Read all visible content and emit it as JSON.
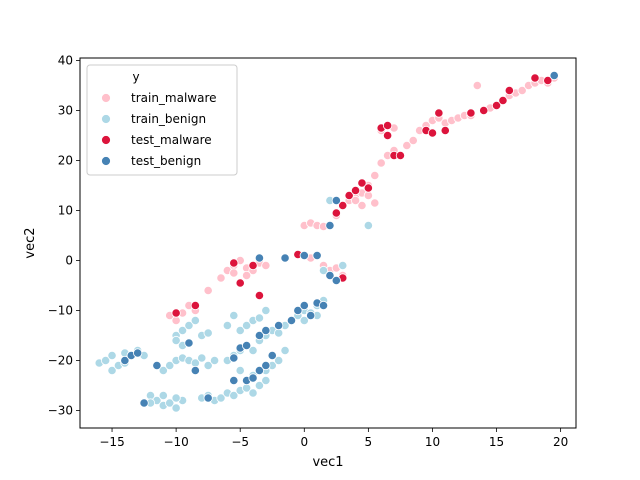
{
  "chart_data": {
    "type": "scatter",
    "title": "",
    "xlabel": "vec1",
    "ylabel": "vec2",
    "xlim": [
      -17.5,
      21.2
    ],
    "ylim": [
      -33.5,
      40.5
    ],
    "xticks": [
      -15,
      -10,
      -5,
      0,
      5,
      10,
      15,
      20
    ],
    "yticks": [
      -30,
      -20,
      -10,
      0,
      10,
      20,
      30,
      40
    ],
    "grid": false,
    "legend": {
      "title": "y",
      "placement": "top-left"
    },
    "series": [
      {
        "name": "train_malware",
        "color": "#ffc0cb",
        "points": [
          [
            -10.5,
            -11
          ],
          [
            -10,
            -12
          ],
          [
            -9.5,
            -10.5
          ],
          [
            -9,
            -9
          ],
          [
            -8.5,
            -10
          ],
          [
            -7.5,
            -6
          ],
          [
            -6.5,
            -3.5
          ],
          [
            -6,
            -2
          ],
          [
            -5.5,
            -1
          ],
          [
            -5,
            0
          ],
          [
            -4.5,
            -1.5
          ],
          [
            -4,
            -2
          ],
          [
            -3.5,
            -0.5
          ],
          [
            -3,
            -1
          ],
          [
            -4.5,
            -3
          ],
          [
            -5.5,
            -2.5
          ],
          [
            0,
            1
          ],
          [
            0.5,
            0.5
          ],
          [
            1,
            1
          ],
          [
            1.5,
            -1
          ],
          [
            2,
            -2
          ],
          [
            2.5,
            -1.5
          ],
          [
            3,
            -3
          ],
          [
            -0.5,
            1.2
          ],
          [
            0,
            7
          ],
          [
            0.5,
            7.5
          ],
          [
            1,
            7
          ],
          [
            1.5,
            6.8
          ],
          [
            2.5,
            9
          ],
          [
            3,
            11
          ],
          [
            3.5,
            12
          ],
          [
            4,
            13
          ],
          [
            4.5,
            13.5
          ],
          [
            5,
            15
          ],
          [
            5,
            13
          ],
          [
            4.5,
            11
          ],
          [
            4,
            12
          ],
          [
            5.5,
            11.5
          ],
          [
            5.5,
            17
          ],
          [
            6,
            19.5
          ],
          [
            6.5,
            21
          ],
          [
            7,
            22
          ],
          [
            7.5,
            21
          ],
          [
            8,
            23
          ],
          [
            8.5,
            24
          ],
          [
            9,
            26
          ],
          [
            9.5,
            27
          ],
          [
            10,
            28
          ],
          [
            10.5,
            28.5
          ],
          [
            11,
            27.5
          ],
          [
            11.5,
            28
          ],
          [
            12,
            28.5
          ],
          [
            12.5,
            29
          ],
          [
            13,
            29
          ],
          [
            13.5,
            35
          ],
          [
            14,
            30
          ],
          [
            14.5,
            30.5
          ],
          [
            15,
            31
          ],
          [
            15.5,
            32
          ],
          [
            16,
            33
          ],
          [
            16.5,
            33.5
          ],
          [
            17,
            34
          ],
          [
            17.5,
            35
          ],
          [
            18,
            35.5
          ],
          [
            18.5,
            36
          ],
          [
            19,
            35.5
          ],
          [
            19.5,
            36.5
          ],
          [
            6,
            26
          ],
          [
            7,
            26.5
          ]
        ]
      },
      {
        "name": "train_benign",
        "color": "#add8e6",
        "points": [
          [
            -16,
            -20.5
          ],
          [
            -15.5,
            -20
          ],
          [
            -15,
            -22
          ],
          [
            -14.5,
            -21
          ],
          [
            -14,
            -18.5
          ],
          [
            -13.5,
            -19
          ],
          [
            -13,
            -18
          ],
          [
            -12.5,
            -19
          ],
          [
            -15,
            -19
          ],
          [
            -14,
            -20.5
          ],
          [
            -12,
            -27
          ],
          [
            -11.5,
            -28
          ],
          [
            -11,
            -29
          ],
          [
            -10.5,
            -28.5
          ],
          [
            -10,
            -29.5
          ],
          [
            -9.5,
            -28
          ],
          [
            -11,
            -27
          ],
          [
            -12,
            -28.5
          ],
          [
            -10,
            -27.5
          ],
          [
            -11,
            -22
          ],
          [
            -10.5,
            -21
          ],
          [
            -10,
            -20
          ],
          [
            -9.5,
            -19.5
          ],
          [
            -9,
            -20
          ],
          [
            -8.5,
            -20.5
          ],
          [
            -8,
            -19.5
          ],
          [
            -7.5,
            -21
          ],
          [
            -7,
            -20
          ],
          [
            -10,
            -15
          ],
          [
            -9.5,
            -14
          ],
          [
            -9,
            -13
          ],
          [
            -8.5,
            -12
          ],
          [
            -9.5,
            -17
          ],
          [
            -10,
            -16
          ],
          [
            -8,
            -15
          ],
          [
            -7.5,
            -14.5
          ],
          [
            -8,
            -27.5
          ],
          [
            -7.5,
            -27
          ],
          [
            -7,
            -28
          ],
          [
            -6.5,
            -27.5
          ],
          [
            -6,
            -26.5
          ],
          [
            -5.5,
            -27
          ],
          [
            -5,
            -26
          ],
          [
            -4.5,
            -25.5
          ],
          [
            -4,
            -26.5
          ],
          [
            -3.5,
            -25
          ],
          [
            -3,
            -24
          ],
          [
            -6,
            -20
          ],
          [
            -5.5,
            -19
          ],
          [
            -5,
            -18
          ],
          [
            -4.5,
            -17
          ],
          [
            -4,
            -18
          ],
          [
            -3.5,
            -16
          ],
          [
            -3,
            -15
          ],
          [
            -2.5,
            -14
          ],
          [
            -2,
            -14.5
          ],
          [
            -1.5,
            -13
          ],
          [
            -1,
            -12
          ],
          [
            -0.5,
            -11
          ],
          [
            0,
            -10
          ],
          [
            0.5,
            -10.5
          ],
          [
            1,
            -9
          ],
          [
            1.5,
            -8
          ],
          [
            -5,
            -14
          ],
          [
            -4.5,
            -13
          ],
          [
            -4,
            -12
          ],
          [
            -3.5,
            -11.5
          ],
          [
            -3,
            -10
          ],
          [
            -5.5,
            -11
          ],
          [
            -6,
            -13
          ],
          [
            -5,
            -22
          ],
          [
            -4,
            -23
          ],
          [
            -3,
            -22
          ],
          [
            -2.5,
            -21
          ],
          [
            -2,
            -20
          ],
          [
            -1.5,
            -18
          ],
          [
            1.5,
            -2
          ],
          [
            2,
            -3
          ],
          [
            2.5,
            -4
          ],
          [
            3,
            -1
          ],
          [
            5,
            7
          ],
          [
            2,
            12
          ],
          [
            1,
            -11
          ],
          [
            0,
            -12
          ]
        ]
      },
      {
        "name": "test_malware",
        "color": "#dc143c",
        "points": [
          [
            -10,
            -10.5
          ],
          [
            -8.5,
            -9
          ],
          [
            -5.5,
            -0.5
          ],
          [
            -5,
            -4.5
          ],
          [
            -4,
            -1
          ],
          [
            -3.5,
            -7
          ],
          [
            -0.5,
            1.2
          ],
          [
            3,
            -3.5
          ],
          [
            2.5,
            9.5
          ],
          [
            3,
            11
          ],
          [
            3.5,
            13
          ],
          [
            4,
            14
          ],
          [
            4.5,
            15.5
          ],
          [
            5,
            14.5
          ],
          [
            6,
            26.5
          ],
          [
            6.5,
            25
          ],
          [
            6.5,
            27
          ],
          [
            7,
            21
          ],
          [
            7.5,
            21
          ],
          [
            9.5,
            26
          ],
          [
            10,
            25.5
          ],
          [
            10.5,
            29.5
          ],
          [
            11,
            26
          ],
          [
            13,
            29.5
          ],
          [
            14,
            30
          ],
          [
            15,
            31
          ],
          [
            15.5,
            32
          ],
          [
            16,
            34
          ],
          [
            18,
            36.5
          ],
          [
            19,
            36
          ]
        ]
      },
      {
        "name": "test_benign",
        "color": "#4682b4",
        "points": [
          [
            -14,
            -20
          ],
          [
            -13.5,
            -19
          ],
          [
            -13,
            -18.5
          ],
          [
            -12.5,
            -28.5
          ],
          [
            -11.5,
            -21
          ],
          [
            -9,
            -16.5
          ],
          [
            -8.5,
            -22
          ],
          [
            -7.5,
            -27.5
          ],
          [
            -5.5,
            -19.5
          ],
          [
            -5,
            -17.5
          ],
          [
            -5.5,
            -24
          ],
          [
            -4.5,
            -24
          ],
          [
            -4,
            -23.5
          ],
          [
            -3.5,
            -22
          ],
          [
            -3,
            -21
          ],
          [
            -2.5,
            -19
          ],
          [
            -4.5,
            -17
          ],
          [
            -3.5,
            -15
          ],
          [
            -3,
            -14
          ],
          [
            -2,
            -13
          ],
          [
            -1,
            -12
          ],
          [
            -0.5,
            -10
          ],
          [
            0,
            -9
          ],
          [
            0.5,
            -11
          ],
          [
            1,
            -8.5
          ],
          [
            1.5,
            -9
          ],
          [
            -3.5,
            0.5
          ],
          [
            -1.5,
            0.5
          ],
          [
            0,
            1
          ],
          [
            1,
            1
          ],
          [
            2,
            -3
          ],
          [
            2.5,
            -4
          ],
          [
            2,
            7
          ],
          [
            2.5,
            12
          ],
          [
            19.5,
            37
          ]
        ]
      }
    ]
  }
}
